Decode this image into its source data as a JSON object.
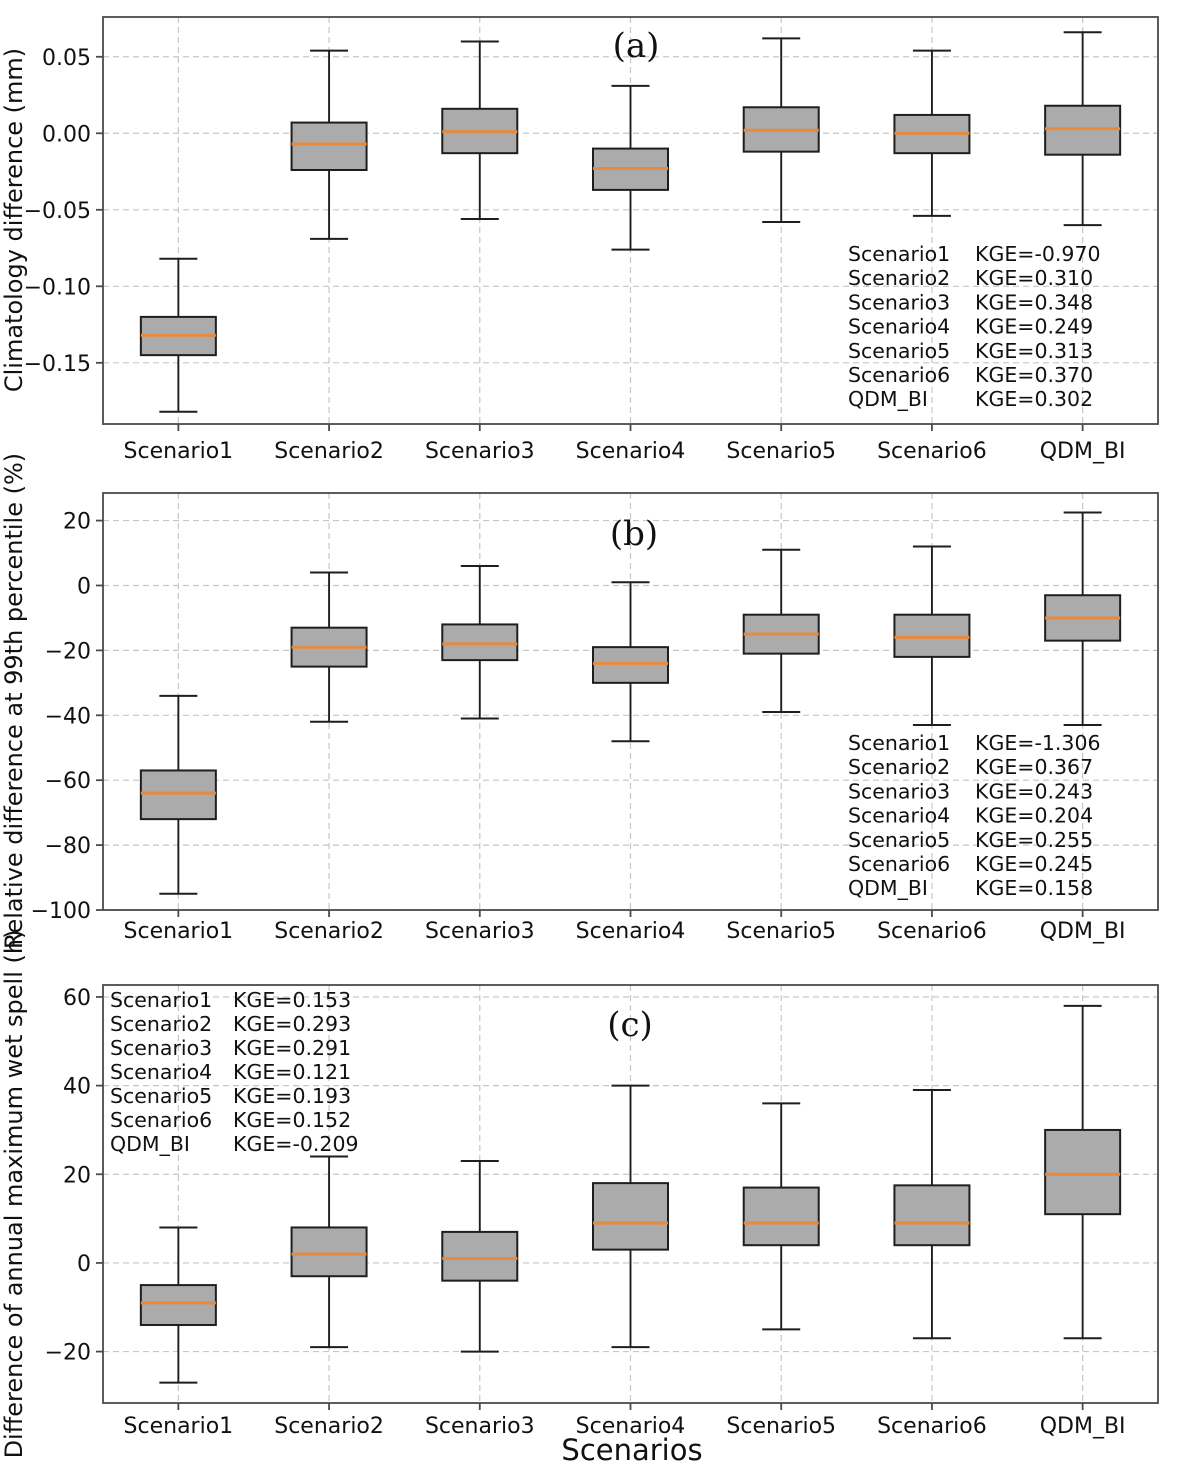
{
  "figure": {
    "xlabel": "Scenarios",
    "categories": [
      "Scenario1",
      "Scenario2",
      "Scenario3",
      "Scenario4",
      "Scenario5",
      "Scenario6",
      "QDM_BI"
    ]
  },
  "colors": {
    "box_fill": "#ababab",
    "box_edge": "#1e1e1e",
    "median": "#e78a3c",
    "whisker": "#1e1e1e",
    "grid": "#c6c6c6",
    "spine": "#4a4a4a",
    "text": "#111111",
    "background": "#ffffff"
  },
  "chart_data": [
    {
      "type": "boxplot",
      "panel_label": "(a)",
      "ylabel": "Climatology difference (mm)",
      "categories": [
        "Scenario1",
        "Scenario2",
        "Scenario3",
        "Scenario4",
        "Scenario5",
        "Scenario6",
        "QDM_BI"
      ],
      "ylim": [
        -0.19,
        0.076
      ],
      "yticks": [
        {
          "v": 0.05,
          "label": "0.05"
        },
        {
          "v": 0.0,
          "label": "0.00"
        },
        {
          "v": -0.05,
          "label": "−0.05"
        },
        {
          "v": -0.1,
          "label": "−0.10"
        },
        {
          "v": -0.15,
          "label": "−0.15"
        }
      ],
      "grid": true,
      "boxes": [
        {
          "whislo": -0.182,
          "q1": -0.145,
          "med": -0.132,
          "q3": -0.12,
          "whishi": -0.082
        },
        {
          "whislo": -0.069,
          "q1": -0.024,
          "med": -0.007,
          "q3": 0.007,
          "whishi": 0.054
        },
        {
          "whislo": -0.056,
          "q1": -0.013,
          "med": 0.001,
          "q3": 0.016,
          "whishi": 0.06
        },
        {
          "whislo": -0.076,
          "q1": -0.037,
          "med": -0.023,
          "q3": -0.01,
          "whishi": 0.031
        },
        {
          "whislo": -0.058,
          "q1": -0.012,
          "med": 0.002,
          "q3": 0.017,
          "whishi": 0.062
        },
        {
          "whislo": -0.054,
          "q1": -0.013,
          "med": 0.0,
          "q3": 0.012,
          "whishi": 0.054
        },
        {
          "whislo": -0.06,
          "q1": -0.014,
          "med": 0.003,
          "q3": 0.018,
          "whishi": 0.066
        }
      ],
      "kge_annotations": [
        {
          "name": "Scenario1",
          "text": "KGE=-0.970"
        },
        {
          "name": "Scenario2",
          "text": "KGE=0.310"
        },
        {
          "name": "Scenario3",
          "text": "KGE=0.348"
        },
        {
          "name": "Scenario4",
          "text": "KGE=0.249"
        },
        {
          "name": "Scenario5",
          "text": "KGE=0.313"
        },
        {
          "name": "Scenario6",
          "text": "KGE=0.370"
        },
        {
          "name": "QDM_BI",
          "text": "KGE=0.302"
        }
      ],
      "legend_position": "lower-right"
    },
    {
      "type": "boxplot",
      "panel_label": "(b)",
      "ylabel": "Relative difference at 99th percentile (%)",
      "categories": [
        "Scenario1",
        "Scenario2",
        "Scenario3",
        "Scenario4",
        "Scenario5",
        "Scenario6",
        "QDM_BI"
      ],
      "ylim": [
        -100,
        28.5
      ],
      "yticks": [
        {
          "v": 20,
          "label": "20"
        },
        {
          "v": 0,
          "label": "0"
        },
        {
          "v": -20,
          "label": "−20"
        },
        {
          "v": -40,
          "label": "−40"
        },
        {
          "v": -60,
          "label": "−60"
        },
        {
          "v": -80,
          "label": "−80"
        },
        {
          "v": -100,
          "label": "−100"
        }
      ],
      "grid": true,
      "boxes": [
        {
          "whislo": -95,
          "q1": -72,
          "med": -64,
          "q3": -57,
          "whishi": -34
        },
        {
          "whislo": -42,
          "q1": -25,
          "med": -19,
          "q3": -13,
          "whishi": 4
        },
        {
          "whislo": -41,
          "q1": -23,
          "med": -18,
          "q3": -12,
          "whishi": 6
        },
        {
          "whislo": -48,
          "q1": -30,
          "med": -24,
          "q3": -19,
          "whishi": 1
        },
        {
          "whislo": -39,
          "q1": -21,
          "med": -15,
          "q3": -9,
          "whishi": 11
        },
        {
          "whislo": -43,
          "q1": -22,
          "med": -16,
          "q3": -9,
          "whishi": 12
        },
        {
          "whislo": -43,
          "q1": -17,
          "med": -10,
          "q3": -3,
          "whishi": 22.5
        }
      ],
      "kge_annotations": [
        {
          "name": "Scenario1",
          "text": "KGE=-1.306"
        },
        {
          "name": "Scenario2",
          "text": "KGE=0.367"
        },
        {
          "name": "Scenario3",
          "text": "KGE=0.243"
        },
        {
          "name": "Scenario4",
          "text": "KGE=0.204"
        },
        {
          "name": "Scenario5",
          "text": "KGE=0.255"
        },
        {
          "name": "Scenario6",
          "text": "KGE=0.245"
        },
        {
          "name": "QDM_BI",
          "text": "KGE=0.158"
        }
      ],
      "legend_position": "lower-right"
    },
    {
      "type": "boxplot",
      "panel_label": "(c)",
      "ylabel": "Difference of annual maximum wet spell (h)",
      "categories": [
        "Scenario1",
        "Scenario2",
        "Scenario3",
        "Scenario4",
        "Scenario5",
        "Scenario6",
        "QDM_BI"
      ],
      "ylim": [
        -31.6,
        62.7
      ],
      "yticks": [
        {
          "v": 60,
          "label": "60"
        },
        {
          "v": 40,
          "label": "40"
        },
        {
          "v": 20,
          "label": "20"
        },
        {
          "v": 0,
          "label": "0"
        },
        {
          "v": -20,
          "label": "−20"
        }
      ],
      "grid": true,
      "boxes": [
        {
          "whislo": -27,
          "q1": -14,
          "med": -9,
          "q3": -5,
          "whishi": 8
        },
        {
          "whislo": -19,
          "q1": -3,
          "med": 2,
          "q3": 8,
          "whishi": 24
        },
        {
          "whislo": -20,
          "q1": -4,
          "med": 1,
          "q3": 7,
          "whishi": 23
        },
        {
          "whislo": -19,
          "q1": 3,
          "med": 9,
          "q3": 18,
          "whishi": 40
        },
        {
          "whislo": -15,
          "q1": 4,
          "med": 9,
          "q3": 17,
          "whishi": 36
        },
        {
          "whislo": -17,
          "q1": 4,
          "med": 9,
          "q3": 17.5,
          "whishi": 39
        },
        {
          "whislo": -17,
          "q1": 11,
          "med": 20,
          "q3": 30,
          "whishi": 58
        }
      ],
      "kge_annotations": [
        {
          "name": "Scenario1",
          "text": "KGE=0.153"
        },
        {
          "name": "Scenario2",
          "text": "KGE=0.293"
        },
        {
          "name": "Scenario3",
          "text": "KGE=0.291"
        },
        {
          "name": "Scenario4",
          "text": "KGE=0.121"
        },
        {
          "name": "Scenario5",
          "text": "KGE=0.193"
        },
        {
          "name": "Scenario6",
          "text": "KGE=0.152"
        },
        {
          "name": "QDM_BI",
          "text": "KGE=-0.209"
        }
      ],
      "legend_position": "upper-left"
    }
  ]
}
